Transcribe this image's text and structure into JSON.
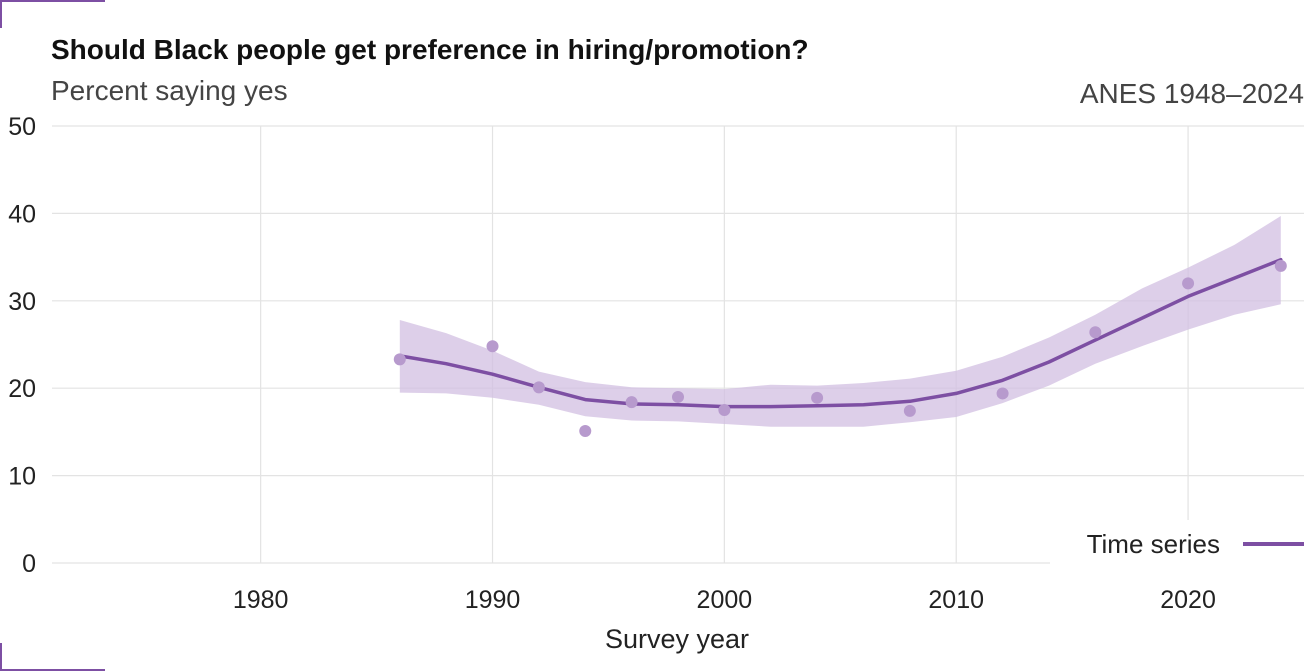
{
  "chart_data": {
    "type": "line",
    "title": "Should Black people get preference in hiring/promotion?",
    "subtitle": "Percent saying yes",
    "source": "ANES 1948–2024",
    "xlabel": "Survey year",
    "ylabel": "",
    "xlim": [
      1971,
      2025
    ],
    "ylim": [
      0,
      50
    ],
    "x_ticks": [
      1980,
      1990,
      2000,
      2010,
      2020
    ],
    "y_ticks": [
      0,
      10,
      20,
      30,
      40,
      50
    ],
    "grid": true,
    "legend_placement": "bottom-right",
    "colors": {
      "line": "#7d4fa3",
      "points": "#b79acd",
      "band": "#d2bfe2",
      "grid": "#e3e3e3"
    },
    "points": {
      "x": [
        1986,
        1990,
        1992,
        1994,
        1996,
        1998,
        2000,
        2004,
        2008,
        2012,
        2016,
        2020,
        2024
      ],
      "y": [
        23.3,
        24.8,
        20.1,
        15.1,
        18.4,
        19.0,
        17.5,
        18.9,
        17.4,
        19.4,
        26.4,
        32.0,
        34.0
      ]
    },
    "series": [
      {
        "name": "Time series",
        "x": [
          1986,
          1988,
          1990,
          1992,
          1994,
          1996,
          1998,
          2000,
          2002,
          2004,
          2006,
          2008,
          2010,
          2012,
          2014,
          2016,
          2018,
          2020,
          2022,
          2024
        ],
        "values": [
          23.7,
          22.8,
          21.6,
          20.1,
          18.7,
          18.2,
          18.1,
          17.9,
          17.9,
          18.0,
          18.1,
          18.5,
          19.4,
          20.9,
          23.0,
          25.5,
          28.0,
          30.5,
          32.6,
          34.7
        ],
        "lower": [
          19.5,
          19.4,
          18.9,
          18.1,
          16.8,
          16.3,
          16.2,
          15.9,
          15.6,
          15.6,
          15.6,
          16.1,
          16.7,
          18.3,
          20.3,
          22.8,
          24.8,
          26.7,
          28.4,
          29.6
        ],
        "upper": [
          27.8,
          26.3,
          24.3,
          21.9,
          20.7,
          20.1,
          20.0,
          19.9,
          20.4,
          20.3,
          20.6,
          21.1,
          22.0,
          23.6,
          25.8,
          28.4,
          31.4,
          33.8,
          36.4,
          39.7
        ]
      }
    ]
  }
}
